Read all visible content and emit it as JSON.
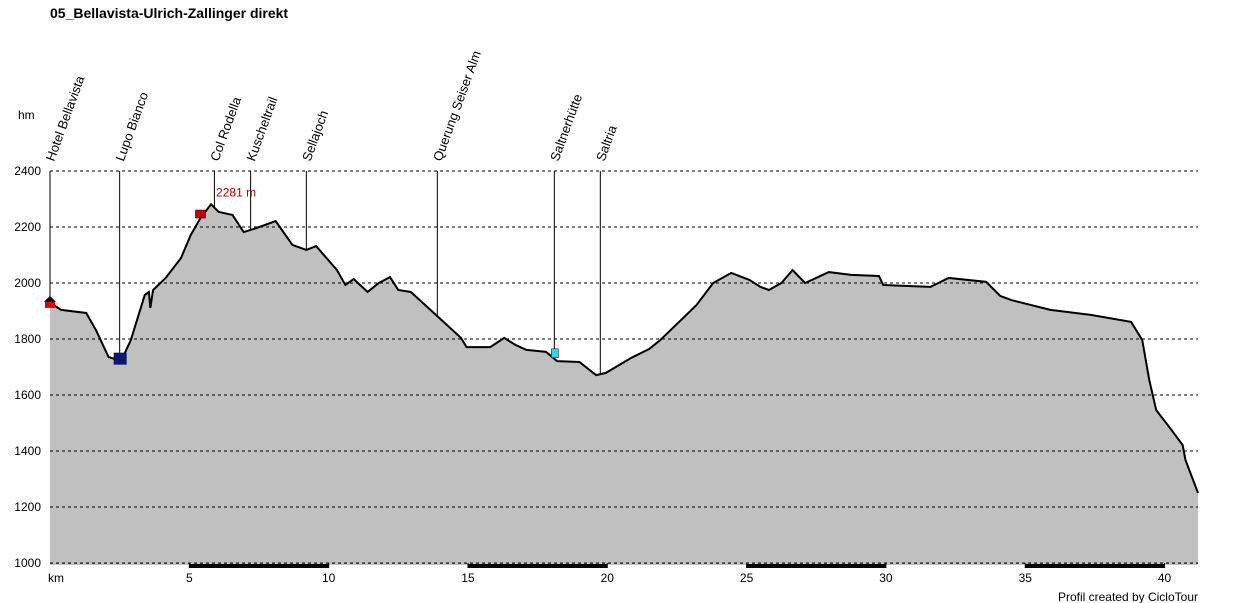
{
  "chart_data": {
    "type": "area",
    "title": "05_Bellavista-Ulrich-Zallinger direkt",
    "y_label": "hm",
    "x_label": "km",
    "footer": "Profil created by CicloTour",
    "annotation": "2281 m",
    "color": "#c0c0c0",
    "grid": true,
    "xlim": [
      0,
      41.2
    ],
    "ylim": [
      1000,
      2400
    ],
    "xticks": [
      5,
      10,
      15,
      20,
      25,
      30,
      35,
      40
    ],
    "yticks": [
      1000,
      1200,
      1400,
      1600,
      1800,
      2000,
      2200,
      2400
    ],
    "x": [
      0,
      0.4,
      1.3,
      1.65,
      2.1,
      2.55,
      2.9,
      3.4,
      3.55,
      3.6,
      3.7,
      4.15,
      4.7,
      5.05,
      5.4,
      5.78,
      6.05,
      6.55,
      6.95,
      7.4,
      8.1,
      8.7,
      9.2,
      9.55,
      10.3,
      10.6,
      10.9,
      11.4,
      11.8,
      12.2,
      12.5,
      12.95,
      13.85,
      14.75,
      14.95,
      15.8,
      16.3,
      16.7,
      17.1,
      17.8,
      18.2,
      19.0,
      19.6,
      19.95,
      20.85,
      21.5,
      21.9,
      22.65,
      23.2,
      23.8,
      24.45,
      25.1,
      25.5,
      25.8,
      26.25,
      26.65,
      27.1,
      27.95,
      28.75,
      29.75,
      29.9,
      31.6,
      32.25,
      33.6,
      34.1,
      34.5,
      35.9,
      37.35,
      38.8,
      39.2,
      39.45,
      39.7,
      40.25,
      40.65,
      40.75,
      41.2
    ],
    "values": [
      1929,
      1904,
      1893,
      1832,
      1736,
      1721,
      1796,
      1957,
      1968,
      1911,
      1975,
      2018,
      2089,
      2171,
      2232,
      2281,
      2254,
      2243,
      2182,
      2196,
      2221,
      2136,
      2118,
      2132,
      2046,
      1993,
      2014,
      1968,
      2000,
      2021,
      1975,
      1968,
      1886,
      1804,
      1771,
      1771,
      1804,
      1779,
      1761,
      1754,
      1721,
      1718,
      1671,
      1679,
      1732,
      1764,
      1796,
      1868,
      1921,
      2000,
      2036,
      2011,
      1986,
      1975,
      2000,
      2046,
      2000,
      2039,
      2029,
      2025,
      1993,
      1986,
      2018,
      2004,
      1954,
      1939,
      1904,
      1886,
      1861,
      1796,
      1654,
      1546,
      1475,
      1421,
      1368,
      1250
    ],
    "waypoints": [
      {
        "name": "Hotel Bellavista",
        "km": 0
      },
      {
        "name": "Lupo Bianco",
        "km": 2.5
      },
      {
        "name": "Col Rodella",
        "km": 5.9
      },
      {
        "name": "Kuscheltrail",
        "km": 7.2
      },
      {
        "name": "Sellajoch",
        "km": 9.2
      },
      {
        "name": "Querung Seiser Alm",
        "km": 13.9
      },
      {
        "name": "Saltnerhütte",
        "km": 18.1
      },
      {
        "name": "Saltria",
        "km": 19.75
      }
    ]
  }
}
